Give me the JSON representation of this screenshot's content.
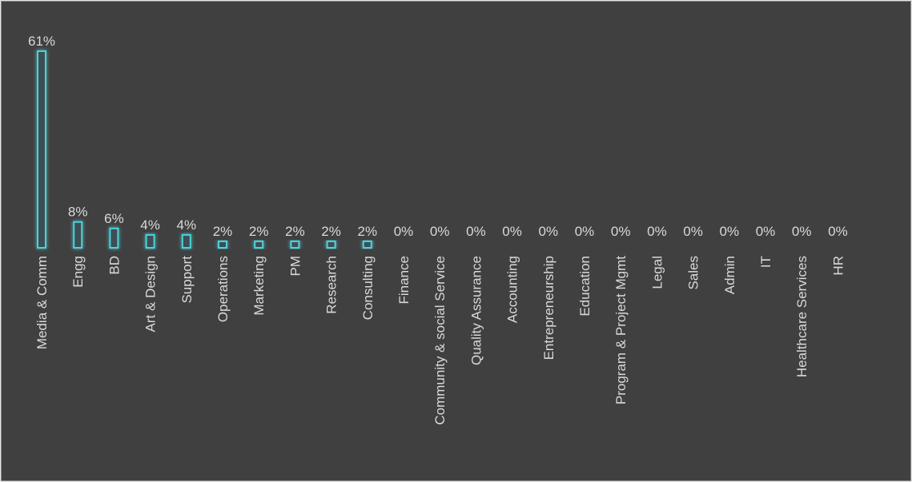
{
  "chart_data": {
    "type": "bar",
    "title": "",
    "xlabel": "",
    "ylabel": "",
    "ylim": [
      0,
      61
    ],
    "grid": false,
    "legend": "none",
    "value_format": "percent",
    "colors": {
      "background": "#404040",
      "bar_outline": "#4fd1d9",
      "text": "#d9d9d9"
    },
    "categories": [
      "Media & Comm",
      "Engg",
      "BD",
      "Art & Design",
      "Support",
      "Operations",
      "Marketing",
      "PM",
      "Research",
      "Consulting",
      "Finance",
      "Community & social Service",
      "Quality Assurance",
      "Accounting",
      "Entrepreneurship",
      "Education",
      "Program & Project Mgmt",
      "Legal",
      "Sales",
      "Admin",
      "IT",
      "Healthcare Services",
      "HR"
    ],
    "values": [
      61,
      8,
      6,
      4,
      4,
      2,
      2,
      2,
      2,
      2,
      0,
      0,
      0,
      0,
      0,
      0,
      0,
      0,
      0,
      0,
      0,
      0,
      0
    ],
    "value_labels": [
      "61%",
      "8%",
      "6%",
      "4%",
      "4%",
      "2%",
      "2%",
      "2%",
      "2%",
      "2%",
      "0%",
      "0%",
      "0%",
      "0%",
      "0%",
      "0%",
      "0%",
      "0%",
      "0%",
      "0%",
      "0%",
      "0%",
      "0%"
    ]
  }
}
